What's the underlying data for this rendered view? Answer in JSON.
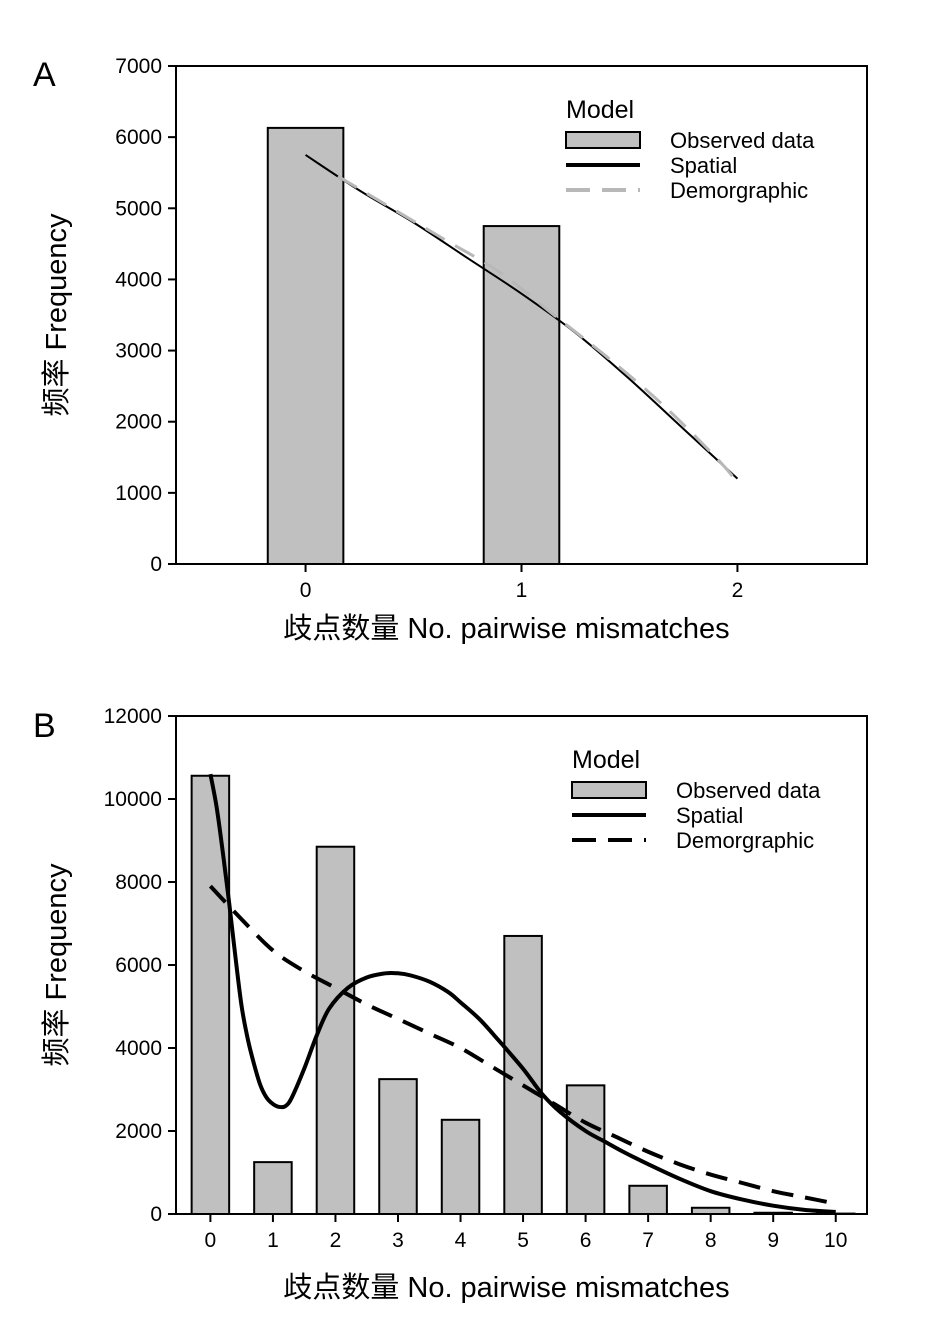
{
  "chart_data": [
    {
      "panel": "A",
      "type": "bar",
      "xlabel": "歧点数量  No. pairwise mismatches",
      "ylabel": "频率 Frequency",
      "x_ticks": [
        0,
        1,
        2
      ],
      "y_ticks": [
        0,
        1000,
        2000,
        3000,
        4000,
        5000,
        6000,
        7000
      ],
      "xlim": [
        -0.6,
        2.6
      ],
      "ylim": [
        0,
        7000
      ],
      "legend": {
        "title": "Model",
        "position": "top-right",
        "entries": [
          {
            "label": "Observed data",
            "kind": "bar"
          },
          {
            "label": "Spatial",
            "kind": "solid"
          },
          {
            "label": "Demorgraphic",
            "kind": "dashed"
          }
        ]
      },
      "bars": {
        "x": [
          0,
          1
        ],
        "values": [
          6130,
          4750
        ],
        "color": "#c0c0c0"
      },
      "series": [
        {
          "name": "Spatial",
          "style": "solid",
          "color": "#000000",
          "x": [
            0,
            0.25,
            0.5,
            0.75,
            1,
            1.25,
            1.5,
            1.75,
            2
          ],
          "y": [
            5750,
            5250,
            4800,
            4300,
            3800,
            3250,
            2600,
            1900,
            1200
          ]
        },
        {
          "name": "Demorgraphic",
          "style": "dashed",
          "color": "#b8b8b8",
          "x": [
            0.15,
            0.4,
            0.65,
            0.9,
            1.15,
            1.4,
            1.65,
            1.9,
            2
          ],
          "y": [
            5450,
            5000,
            4550,
            4100,
            3500,
            2900,
            2250,
            1500,
            1150
          ]
        }
      ]
    },
    {
      "panel": "B",
      "type": "bar",
      "xlabel": "歧点数量  No. pairwise mismatches",
      "ylabel": "频率 Frequency",
      "x_ticks": [
        0,
        1,
        2,
        3,
        4,
        5,
        6,
        7,
        8,
        9,
        10
      ],
      "y_ticks": [
        0,
        2000,
        4000,
        6000,
        8000,
        10000,
        12000
      ],
      "xlim": [
        -0.55,
        10.5
      ],
      "ylim": [
        0,
        12000
      ],
      "legend": {
        "title": "Model",
        "position": "top-right",
        "entries": [
          {
            "label": "Observed data",
            "kind": "bar"
          },
          {
            "label": "Spatial",
            "kind": "solid"
          },
          {
            "label": "Demorgraphic",
            "kind": "dashed"
          }
        ]
      },
      "bars": {
        "x": [
          0,
          1,
          2,
          3,
          4,
          5,
          6,
          7,
          8,
          9,
          10
        ],
        "values": [
          10560,
          1250,
          8850,
          3250,
          2270,
          6700,
          3100,
          680,
          150,
          30,
          10
        ],
        "color": "#c0c0c0"
      },
      "series": [
        {
          "name": "Spatial",
          "style": "solid",
          "color": "#000000",
          "x": [
            0,
            0.1,
            0.2,
            0.3,
            0.4,
            0.5,
            0.6,
            0.7,
            0.8,
            0.9,
            1.0,
            1.1,
            1.2,
            1.3,
            1.5,
            1.7,
            1.9,
            2.2,
            2.5,
            2.8,
            3.0,
            3.2,
            3.5,
            3.8,
            4.0,
            4.3,
            4.6,
            5.0,
            5.3,
            5.6,
            6.0,
            6.3,
            6.6,
            7.0,
            7.5,
            8.0,
            8.5,
            9.0,
            9.5,
            10.0
          ],
          "y": [
            10600,
            9800,
            8700,
            7500,
            6200,
            5000,
            4200,
            3600,
            3100,
            2800,
            2650,
            2580,
            2600,
            2800,
            3500,
            4300,
            4950,
            5450,
            5700,
            5800,
            5800,
            5750,
            5600,
            5350,
            5100,
            4700,
            4200,
            3500,
            2900,
            2450,
            2000,
            1750,
            1500,
            1200,
            850,
            550,
            350,
            200,
            100,
            50
          ]
        },
        {
          "name": "Demorgraphic",
          "style": "dashed",
          "color": "#000000",
          "x": [
            0,
            0.5,
            1,
            1.5,
            2,
            2.5,
            3,
            3.5,
            4,
            4.5,
            5,
            5.5,
            6,
            6.5,
            7,
            7.5,
            8,
            8.5,
            9,
            9.5,
            10
          ],
          "y": [
            7900,
            7100,
            6350,
            5850,
            5450,
            5050,
            4700,
            4350,
            4000,
            3550,
            3100,
            2650,
            2200,
            1850,
            1500,
            1200,
            950,
            750,
            550,
            400,
            250
          ]
        }
      ]
    }
  ]
}
